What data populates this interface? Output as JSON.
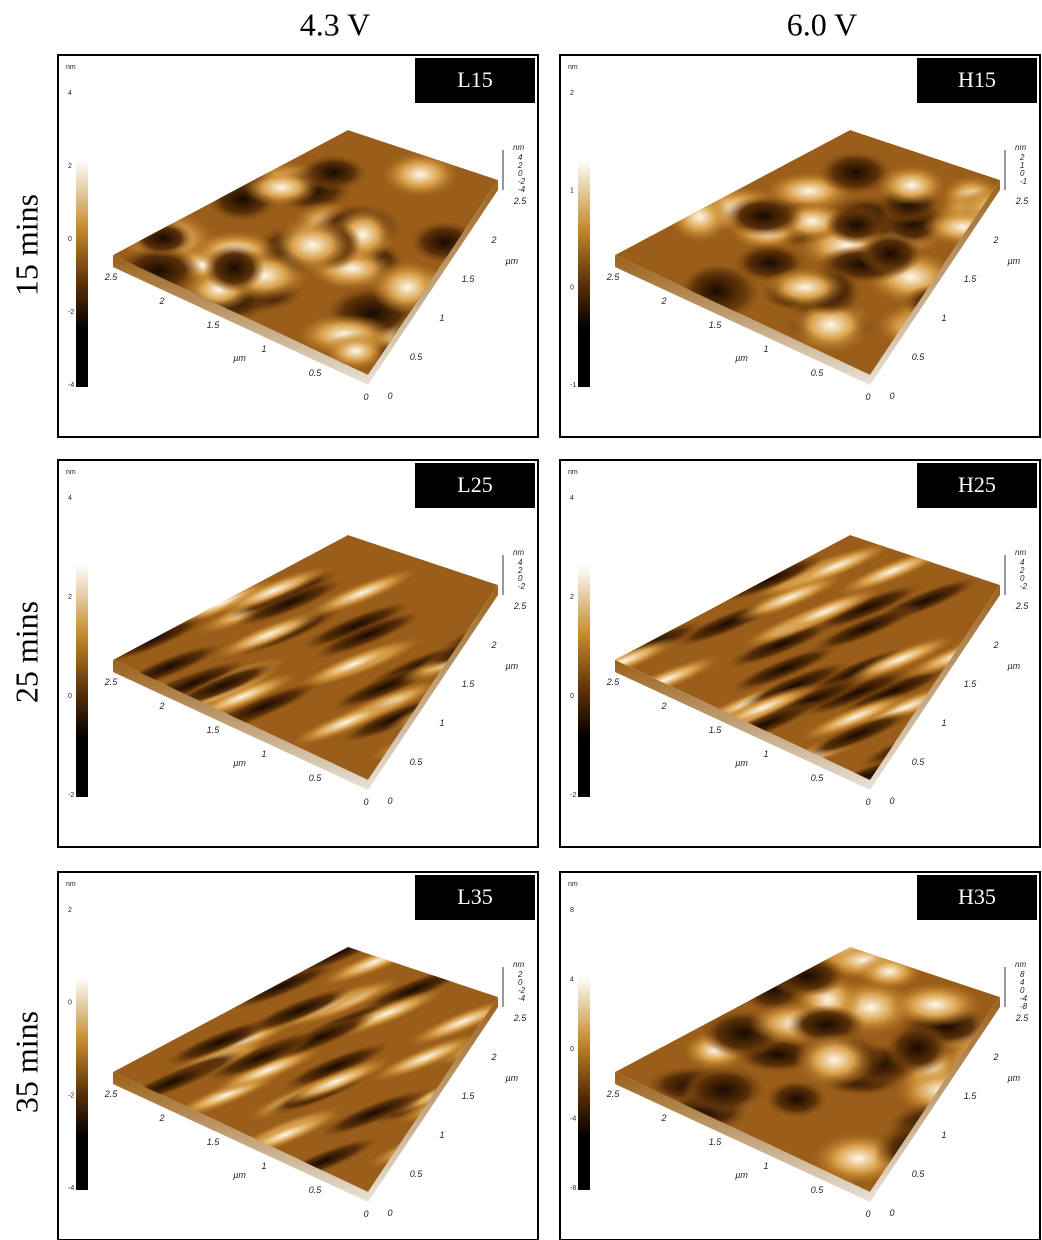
{
  "column_headers": [
    "4.3 V",
    "6.0 V"
  ],
  "row_headers": [
    "15 mins",
    "25 mins",
    "35 mins"
  ],
  "panels": [
    {
      "label": "L15",
      "colorbar_unit": "nm",
      "colorbar_ticks": [
        "4",
        "2",
        "0",
        "-2",
        "-4"
      ],
      "z_unit": "nm",
      "z_ticks": [
        "4",
        "2",
        "0",
        "-2",
        "-4"
      ],
      "x_ticks": [
        "2.5",
        "2",
        "1.5",
        "1",
        "0.5",
        "0"
      ],
      "y_ticks": [
        "0",
        "0.5",
        "1",
        "1.5",
        "2",
        "2.5"
      ],
      "axis_unit": "µm"
    },
    {
      "label": "H15",
      "colorbar_unit": "nm",
      "colorbar_ticks": [
        "2",
        "1",
        "0",
        "-1"
      ],
      "z_unit": "nm",
      "z_ticks": [
        "2",
        "1",
        "0",
        "-1"
      ],
      "x_ticks": [
        "2.5",
        "2",
        "1.5",
        "1",
        "0.5",
        "0"
      ],
      "y_ticks": [
        "0",
        "0.5",
        "1",
        "1.5",
        "2",
        "2.5"
      ],
      "axis_unit": "µm"
    },
    {
      "label": "L25",
      "colorbar_unit": "nm",
      "colorbar_ticks": [
        "4",
        "2",
        "0",
        "-2"
      ],
      "z_unit": "nm",
      "z_ticks": [
        "4",
        "2",
        "0",
        "-2"
      ],
      "x_ticks": [
        "2.5",
        "2",
        "1.5",
        "1",
        "0.5",
        "0"
      ],
      "y_ticks": [
        "0",
        "0.5",
        "1",
        "1.5",
        "2",
        "2.5"
      ],
      "axis_unit": "µm"
    },
    {
      "label": "H25",
      "colorbar_unit": "nm",
      "colorbar_ticks": [
        "4",
        "2",
        "0",
        "-2"
      ],
      "z_unit": "nm",
      "z_ticks": [
        "4",
        "2",
        "0",
        "-2"
      ],
      "x_ticks": [
        "2.5",
        "2",
        "1.5",
        "1",
        "0.5",
        "0"
      ],
      "y_ticks": [
        "0",
        "0.5",
        "1",
        "1.5",
        "2",
        "2.5"
      ],
      "axis_unit": "µm"
    },
    {
      "label": "L35",
      "colorbar_unit": "nm",
      "colorbar_ticks": [
        "2",
        "0",
        "-2",
        "-4"
      ],
      "z_unit": "nm",
      "z_ticks": [
        "2",
        "0",
        "-2",
        "-4"
      ],
      "x_ticks": [
        "2.5",
        "2",
        "1.5",
        "1",
        "0.5",
        "0"
      ],
      "y_ticks": [
        "0",
        "0.5",
        "1",
        "1.5",
        "2",
        "2.5"
      ],
      "axis_unit": "µm"
    },
    {
      "label": "H35",
      "colorbar_unit": "nm",
      "colorbar_ticks": [
        "8",
        "4",
        "0",
        "-4",
        "-8"
      ],
      "z_unit": "nm",
      "z_ticks": [
        "8",
        "4",
        "0",
        "-4",
        "-8"
      ],
      "x_ticks": [
        "2.5",
        "2",
        "1.5",
        "1",
        "0.5",
        "0"
      ],
      "y_ticks": [
        "0",
        "0.5",
        "1",
        "1.5",
        "2",
        "2.5"
      ],
      "axis_unit": "µm"
    }
  ]
}
